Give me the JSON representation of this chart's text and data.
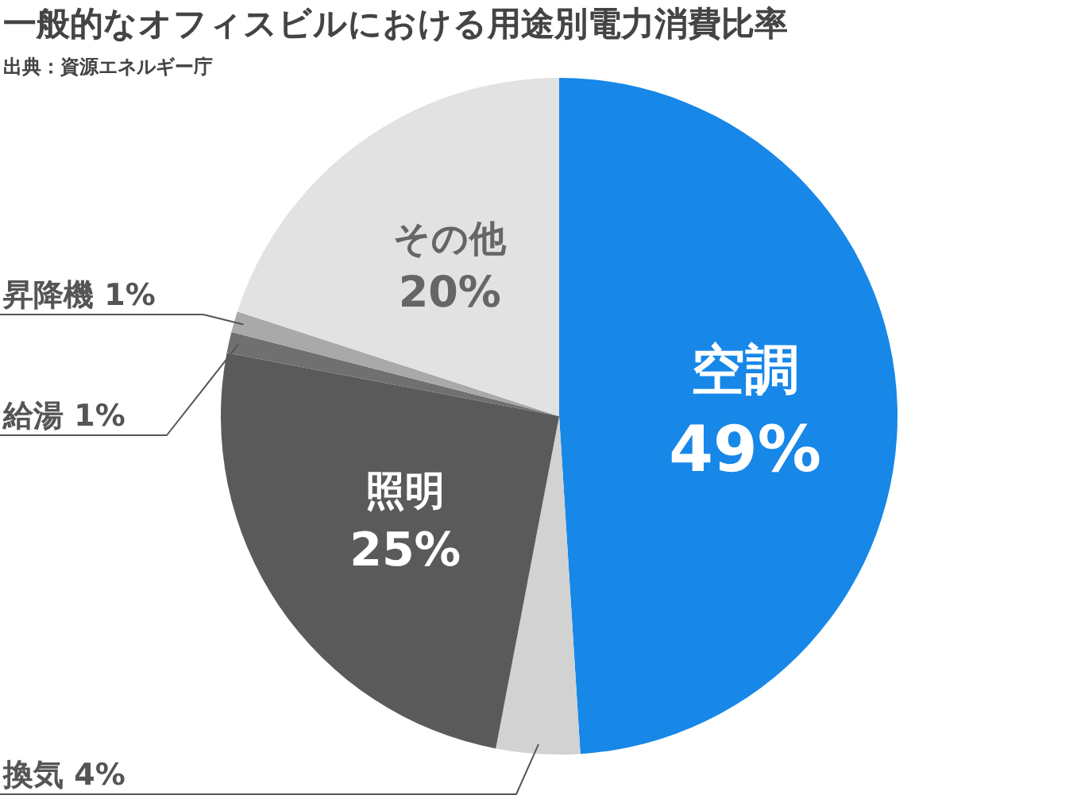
{
  "chart_data": {
    "type": "pie",
    "title": "一般的なオフィスビルにおける用途別電力消費比率",
    "subtitle": "出典：資源エネルギー庁",
    "categories": [
      "空調",
      "換気",
      "照明",
      "給湯",
      "昇降機",
      "その他"
    ],
    "values": [
      49,
      4,
      25,
      1,
      1,
      20
    ],
    "value_labels": [
      "49%",
      "4%",
      "25%",
      "1%",
      "1%",
      "20%"
    ],
    "colors": [
      "#1787e8",
      "#d2d2d2",
      "#5a5a5a",
      "#707070",
      "#a9a9a9",
      "#e2e2e2"
    ]
  }
}
